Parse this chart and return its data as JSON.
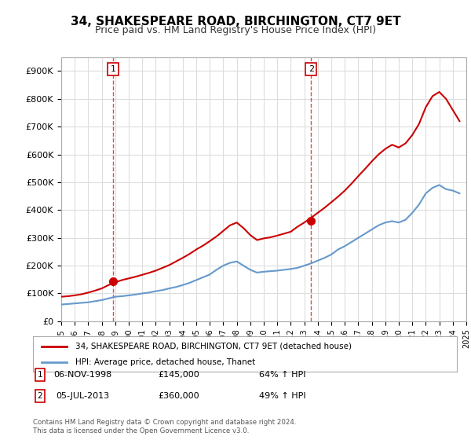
{
  "title": "34, SHAKESPEARE ROAD, BIRCHINGTON, CT7 9ET",
  "subtitle": "Price paid vs. HM Land Registry's House Price Index (HPI)",
  "hpi_label": "HPI: Average price, detached house, Thanet",
  "property_label": "34, SHAKESPEARE ROAD, BIRCHINGTON, CT7 9ET (detached house)",
  "sale1_label": "1",
  "sale1_date": "06-NOV-1998",
  "sale1_price": "£145,000",
  "sale1_hpi": "64% ↑ HPI",
  "sale2_label": "2",
  "sale2_date": "05-JUL-2013",
  "sale2_price": "£360,000",
  "sale2_hpi": "49% ↑ HPI",
  "footer": "Contains HM Land Registry data © Crown copyright and database right 2024.\nThis data is licensed under the Open Government Licence v3.0.",
  "xlim": [
    1995,
    2025
  ],
  "ylim": [
    0,
    950000
  ],
  "yticks": [
    0,
    100000,
    200000,
    300000,
    400000,
    500000,
    600000,
    700000,
    800000,
    900000
  ],
  "ytick_labels": [
    "£0",
    "£100K",
    "£200K",
    "£300K",
    "£400K",
    "£500K",
    "£600K",
    "£700K",
    "£800K",
    "£900K"
  ],
  "xticks": [
    1995,
    1996,
    1997,
    1998,
    1999,
    2000,
    2001,
    2002,
    2003,
    2004,
    2005,
    2006,
    2007,
    2008,
    2009,
    2010,
    2011,
    2012,
    2013,
    2014,
    2015,
    2016,
    2017,
    2018,
    2019,
    2020,
    2021,
    2022,
    2023,
    2024,
    2025
  ],
  "red_color": "#cc0000",
  "blue_color": "#6699cc",
  "grid_color": "#dddddd",
  "bg_color": "#ffffff",
  "marker1_x": 1998.85,
  "marker1_y": 145000,
  "marker2_x": 2013.5,
  "marker2_y": 360000,
  "dashed_x1": 1998.85,
  "dashed_x2": 2013.5,
  "hpi_x_values": [
    1995,
    1995.5,
    1996,
    1996.5,
    1997,
    1997.5,
    1998,
    1998.5,
    1999,
    1999.5,
    2000,
    2000.5,
    2001,
    2001.5,
    2002,
    2002.5,
    2003,
    2003.5,
    2004,
    2004.5,
    2005,
    2005.5,
    2006,
    2006.5,
    2007,
    2007.5,
    2008,
    2008.5,
    2009,
    2009.5,
    2010,
    2010.5,
    2011,
    2011.5,
    2012,
    2012.5,
    2013,
    2013.5,
    2014,
    2014.5,
    2015,
    2015.5,
    2016,
    2016.5,
    2017,
    2017.5,
    2018,
    2018.5,
    2019,
    2019.5,
    2020,
    2020.5,
    2021,
    2021.5,
    2022,
    2022.5,
    2023,
    2023.5,
    2024,
    2024.5
  ],
  "hpi_y_values": [
    60000,
    62000,
    64000,
    66000,
    68000,
    72000,
    76000,
    82000,
    88000,
    90000,
    93000,
    96000,
    100000,
    103000,
    108000,
    112000,
    118000,
    123000,
    130000,
    138000,
    148000,
    158000,
    168000,
    185000,
    200000,
    210000,
    215000,
    200000,
    185000,
    175000,
    178000,
    180000,
    182000,
    185000,
    188000,
    192000,
    200000,
    208000,
    218000,
    228000,
    240000,
    258000,
    270000,
    285000,
    300000,
    315000,
    330000,
    345000,
    355000,
    360000,
    355000,
    365000,
    390000,
    420000,
    460000,
    480000,
    490000,
    475000,
    470000,
    460000
  ],
  "property_x_values": [
    1995,
    1995.5,
    1996,
    1996.5,
    1997,
    1997.5,
    1998,
    1998.5,
    1999,
    1999.5,
    2000,
    2000.5,
    2001,
    2001.5,
    2002,
    2002.5,
    2003,
    2003.5,
    2004,
    2004.5,
    2005,
    2005.5,
    2006,
    2006.5,
    2007,
    2007.5,
    2008,
    2008.5,
    2009,
    2009.5,
    2010,
    2010.5,
    2011,
    2011.5,
    2012,
    2012.5,
    2013,
    2013.5,
    2014,
    2014.5,
    2015,
    2015.5,
    2016,
    2016.5,
    2017,
    2017.5,
    2018,
    2018.5,
    2019,
    2019.5,
    2020,
    2020.5,
    2021,
    2021.5,
    2022,
    2022.5,
    2023,
    2023.5,
    2024,
    2024.5
  ],
  "property_y_values": [
    88000,
    90000,
    93000,
    97000,
    103000,
    110000,
    118000,
    130000,
    140000,
    148000,
    154000,
    160000,
    167000,
    174000,
    182000,
    192000,
    202000,
    215000,
    228000,
    242000,
    258000,
    272000,
    288000,
    305000,
    325000,
    345000,
    355000,
    335000,
    310000,
    292000,
    298000,
    302000,
    308000,
    315000,
    322000,
    340000,
    355000,
    372000,
    390000,
    408000,
    428000,
    448000,
    470000,
    495000,
    522000,
    548000,
    575000,
    600000,
    620000,
    635000,
    625000,
    640000,
    670000,
    710000,
    770000,
    810000,
    825000,
    800000,
    760000,
    720000
  ]
}
